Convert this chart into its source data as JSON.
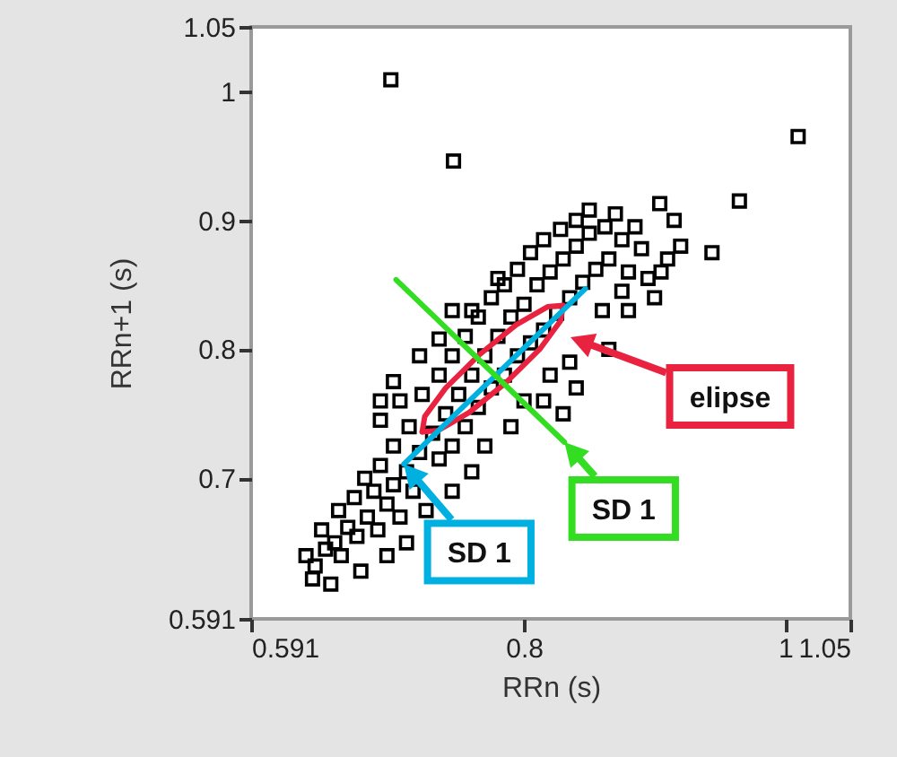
{
  "chart_data": {
    "type": "scatter",
    "xlabel": "RRn (s)",
    "ylabel": "RRn+1 (s)",
    "xlim": [
      0.591,
      1.05
    ],
    "ylim": [
      0.591,
      1.05
    ],
    "xticks": [
      0.591,
      0.8,
      1,
      1.05
    ],
    "yticks": [
      0.591,
      0.7,
      0.8,
      0.9,
      1,
      1.05
    ],
    "marker": "square",
    "series": [
      {
        "color": "#000000",
        "x": [
          0.633,
          0.64,
          0.648,
          0.655,
          0.645,
          0.66,
          0.665,
          0.672,
          0.658,
          0.68,
          0.67,
          0.688,
          0.685,
          0.695,
          0.678,
          0.7,
          0.705,
          0.69,
          0.71,
          0.715,
          0.7,
          0.72,
          0.712,
          0.73,
          0.735,
          0.69,
          0.705,
          0.74,
          0.745,
          0.722,
          0.75,
          0.755,
          0.735,
          0.76,
          0.765,
          0.745,
          0.77,
          0.775,
          0.755,
          0.78,
          0.785,
          0.765,
          0.79,
          0.795,
          0.775,
          0.8,
          0.805,
          0.785,
          0.81,
          0.815,
          0.795,
          0.82,
          0.825,
          0.805,
          0.83,
          0.835,
          0.815,
          0.84,
          0.845,
          0.828,
          0.85,
          0.855,
          0.84,
          0.862,
          0.865,
          0.85,
          0.875,
          0.88,
          0.87,
          0.89,
          0.895,
          0.885,
          0.905,
          0.91,
          0.9,
          0.875,
          0.86,
          0.835,
          0.82,
          0.8,
          0.79,
          0.77,
          0.76,
          0.745,
          0.725,
          0.71,
          0.695,
          0.675,
          0.652,
          0.638,
          0.735,
          0.72,
          0.7,
          0.69,
          0.76,
          0.745,
          0.78,
          0.815,
          0.83,
          0.84,
          0.865,
          0.88,
          0.915,
          0.92,
          0.698,
          1.01,
          0.746,
          0.965,
          0.944,
          0.904
        ],
        "values": [
          0.64,
          0.632,
          0.645,
          0.65,
          0.66,
          0.64,
          0.662,
          0.655,
          0.675,
          0.67,
          0.685,
          0.66,
          0.69,
          0.68,
          0.7,
          0.695,
          0.67,
          0.71,
          0.705,
          0.69,
          0.725,
          0.72,
          0.74,
          0.735,
          0.715,
          0.745,
          0.76,
          0.75,
          0.725,
          0.765,
          0.765,
          0.74,
          0.78,
          0.78,
          0.755,
          0.795,
          0.795,
          0.77,
          0.81,
          0.81,
          0.78,
          0.825,
          0.825,
          0.795,
          0.84,
          0.835,
          0.805,
          0.85,
          0.85,
          0.815,
          0.862,
          0.86,
          0.828,
          0.875,
          0.87,
          0.84,
          0.885,
          0.88,
          0.852,
          0.893,
          0.89,
          0.862,
          0.9,
          0.895,
          0.87,
          0.908,
          0.885,
          0.86,
          0.905,
          0.878,
          0.855,
          0.895,
          0.86,
          0.87,
          0.84,
          0.845,
          0.83,
          0.79,
          0.78,
          0.76,
          0.74,
          0.725,
          0.705,
          0.69,
          0.675,
          0.65,
          0.64,
          0.628,
          0.618,
          0.622,
          0.808,
          0.795,
          0.775,
          0.76,
          0.83,
          0.83,
          0.855,
          0.76,
          0.75,
          0.77,
          0.8,
          0.83,
          0.9,
          0.88,
          1.009,
          0.965,
          0.946,
          0.915,
          0.875,
          0.913
        ]
      },
      {
        "type": "line",
        "marker": "none",
        "color": "#e8223f",
        "x": [
          0.722,
          0.724,
          0.74,
          0.766,
          0.794,
          0.818,
          0.83
        ],
        "values": [
          0.736,
          0.748,
          0.77,
          0.796,
          0.819,
          0.833,
          0.834
        ]
      },
      {
        "type": "line",
        "marker": "none",
        "color": "#e8223f",
        "x": [
          0.722,
          0.734,
          0.758,
          0.786,
          0.812,
          0.828,
          0.83
        ],
        "values": [
          0.736,
          0.737,
          0.751,
          0.774,
          0.8,
          0.822,
          0.834
        ]
      },
      {
        "type": "line",
        "marker": "none",
        "color": "#00b0e0",
        "x": [
          0.708,
          0.847
        ],
        "values": [
          0.711,
          0.847
        ]
      },
      {
        "type": "line",
        "marker": "none",
        "color": "#33dd22",
        "x": [
          0.702,
          0.831
        ],
        "values": [
          0.854,
          0.728
        ]
      }
    ],
    "annotations": [
      "elipse",
      {
        "text": "SD 1",
        "x": 0.831,
        "y": 0.728
      },
      {
        "text": "SD 1",
        "x": 0.708,
        "y": 0.711
      }
    ]
  }
}
